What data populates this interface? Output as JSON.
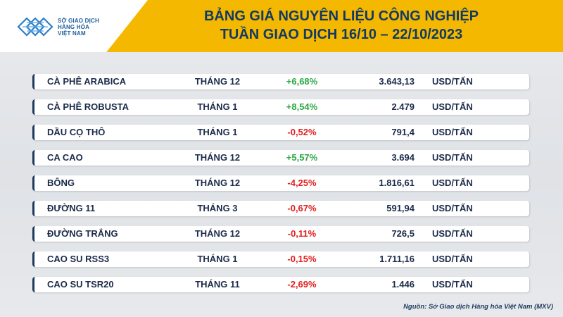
{
  "header": {
    "logo_lines": [
      "SỞ GIAO DỊCH",
      "HÀNG HÓA",
      "VIỆT NAM"
    ],
    "title_line1": "BẢNG GIÁ NGUYÊN LIỆU CÔNG NGHIỆP",
    "title_line2": "TUẦN GIAO DỊCH 16/10 – 22/10/2023"
  },
  "colors": {
    "accent_yellow": "#f5b800",
    "navy": "#1f3a5f",
    "up_green": "#2aa842",
    "down_red": "#e02020"
  },
  "rows": [
    {
      "name": "CÀ PHÊ ARABICA",
      "month": "THÁNG 12",
      "change": "+6,68%",
      "direction": "up",
      "price": "3.643,13",
      "unit": "USD/TẤN"
    },
    {
      "name": "CÀ PHÊ ROBUSTA",
      "month": "THÁNG 1",
      "change": "+8,54%",
      "direction": "up",
      "price": "2.479",
      "unit": "USD/TẤN"
    },
    {
      "name": "DẦU CỌ THÔ",
      "month": "THÁNG 1",
      "change": "-0,52%",
      "direction": "down",
      "price": "791,4",
      "unit": "USD/TẤN"
    },
    {
      "name": "CA CAO",
      "month": "THÁNG 12",
      "change": "+5,57%",
      "direction": "up",
      "price": "3.694",
      "unit": "USD/TẤN"
    },
    {
      "name": "BÔNG",
      "month": "THÁNG 12",
      "change": "-4,25%",
      "direction": "down",
      "price": "1.816,61",
      "unit": "USD/TẤN"
    },
    {
      "name": "ĐƯỜNG 11",
      "month": "THÁNG 3",
      "change": "-0,67%",
      "direction": "down",
      "price": "591,94",
      "unit": "USD/TẤN"
    },
    {
      "name": "ĐƯỜNG TRẮNG",
      "month": "THÁNG 12",
      "change": "-0,11%",
      "direction": "down",
      "price": "726,5",
      "unit": "USD/TẤN"
    },
    {
      "name": "CAO SU RSS3",
      "month": "THÁNG 1",
      "change": "-0,15%",
      "direction": "down",
      "price": "1.711,16",
      "unit": "USD/TẤN"
    },
    {
      "name": "CAO SU TSR20",
      "month": "THÁNG 11",
      "change": "-2,69%",
      "direction": "down",
      "price": "1.446",
      "unit": "USD/TẤN"
    }
  ],
  "source": "Nguồn: Sở Giao dịch Hàng hóa Việt Nam (MXV)"
}
